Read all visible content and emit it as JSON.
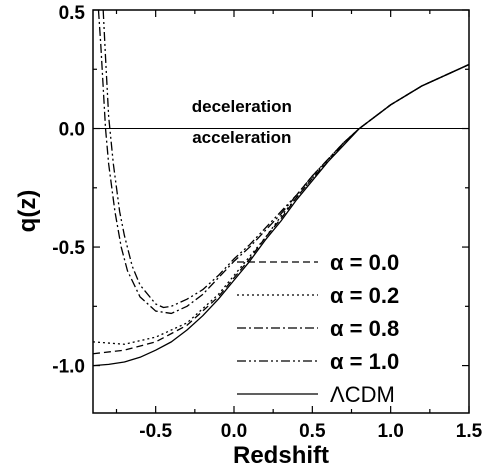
{
  "chart_data": {
    "type": "line",
    "title": "",
    "xlabel": "Redshift",
    "ylabel": "q(z)",
    "xlim": [
      -0.9,
      1.5
    ],
    "ylim": [
      -1.2,
      0.5
    ],
    "x_ticks": [
      -0.5,
      0.0,
      0.5,
      1.0,
      1.5
    ],
    "x_tick_labels": [
      "-0.5",
      "0.0",
      "0.5",
      "1.0",
      "1.5"
    ],
    "y_ticks": [
      -1.0,
      -0.5,
      0.0,
      0.5
    ],
    "y_tick_labels": [
      "-1.0",
      "-0.5",
      "0.0",
      "0.5"
    ],
    "grid": false,
    "legend_position": "bottom-right",
    "reference_line": {
      "y": 0.0
    },
    "annotations": [
      {
        "text": "deceleration",
        "x": 0.05,
        "y": 0.07
      },
      {
        "text": "acceleration",
        "x": 0.05,
        "y": -0.06
      }
    ],
    "series": [
      {
        "name": "α = 0.0",
        "dash": "dashed",
        "x": [
          -0.9,
          -0.7,
          -0.5,
          -0.3,
          -0.1,
          0.0,
          0.1,
          0.2,
          0.3,
          0.4,
          0.5,
          0.6,
          0.7,
          0.8,
          1.0,
          1.2,
          1.5
        ],
        "y": [
          -0.95,
          -0.935,
          -0.9,
          -0.83,
          -0.71,
          -0.63,
          -0.55,
          -0.46,
          -0.38,
          -0.29,
          -0.21,
          -0.14,
          -0.06,
          0.0,
          0.1,
          0.18,
          0.27
        ]
      },
      {
        "name": "α = 0.2",
        "dash": "dotted",
        "x": [
          -0.9,
          -0.8,
          -0.7,
          -0.5,
          -0.3,
          -0.1,
          0.0,
          0.1,
          0.2,
          0.3,
          0.4,
          0.5,
          0.6,
          0.7,
          0.8,
          1.0,
          1.2,
          1.5
        ],
        "y": [
          -0.9,
          -0.905,
          -0.91,
          -0.88,
          -0.82,
          -0.7,
          -0.62,
          -0.54,
          -0.46,
          -0.37,
          -0.29,
          -0.21,
          -0.13,
          -0.06,
          0.0,
          0.1,
          0.18,
          0.27
        ]
      },
      {
        "name": "α = 0.8",
        "dash": "dashdot",
        "x": [
          -0.865,
          -0.85,
          -0.82,
          -0.8,
          -0.76,
          -0.72,
          -0.68,
          -0.6,
          -0.5,
          -0.4,
          -0.3,
          -0.2,
          -0.1,
          0.0,
          0.1,
          0.2,
          0.3,
          0.4,
          0.5,
          0.6,
          0.7,
          0.8,
          1.0,
          1.2,
          1.5
        ],
        "y": [
          0.5,
          0.35,
          0.0,
          -0.15,
          -0.35,
          -0.5,
          -0.6,
          -0.71,
          -0.77,
          -0.78,
          -0.75,
          -0.7,
          -0.63,
          -0.56,
          -0.5,
          -0.43,
          -0.36,
          -0.28,
          -0.2,
          -0.13,
          -0.06,
          0.0,
          0.1,
          0.18,
          0.27
        ]
      },
      {
        "name": "α = 1.0",
        "dash": "dashdotdot",
        "x": [
          -0.835,
          -0.82,
          -0.8,
          -0.77,
          -0.73,
          -0.7,
          -0.65,
          -0.6,
          -0.5,
          -0.45,
          -0.4,
          -0.3,
          -0.2,
          -0.1,
          0.0,
          0.1,
          0.2,
          0.3,
          0.4,
          0.5,
          0.6,
          0.7,
          0.8,
          1.0,
          1.2,
          1.5
        ],
        "y": [
          0.5,
          0.3,
          0.05,
          -0.15,
          -0.35,
          -0.45,
          -0.58,
          -0.66,
          -0.74,
          -0.755,
          -0.75,
          -0.72,
          -0.68,
          -0.62,
          -0.55,
          -0.49,
          -0.42,
          -0.35,
          -0.28,
          -0.2,
          -0.13,
          -0.06,
          0.0,
          0.1,
          0.18,
          0.27
        ]
      },
      {
        "name": "ΛCDM",
        "dash": "solid",
        "x": [
          -0.9,
          -0.8,
          -0.7,
          -0.6,
          -0.5,
          -0.4,
          -0.3,
          -0.2,
          -0.1,
          0.0,
          0.1,
          0.2,
          0.3,
          0.4,
          0.5,
          0.6,
          0.7,
          0.8,
          1.0,
          1.2,
          1.5
        ],
        "y": [
          -1.0,
          -0.995,
          -0.985,
          -0.965,
          -0.935,
          -0.9,
          -0.85,
          -0.79,
          -0.72,
          -0.64,
          -0.56,
          -0.47,
          -0.39,
          -0.3,
          -0.22,
          -0.14,
          -0.07,
          0.0,
          0.1,
          0.18,
          0.27
        ]
      }
    ]
  }
}
